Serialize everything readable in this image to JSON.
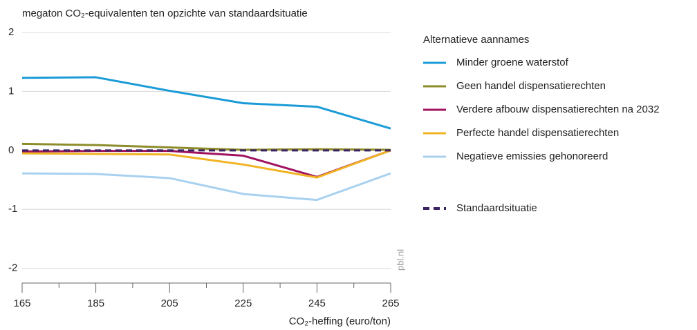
{
  "chart_data": {
    "type": "line",
    "title": "megaton CO₂-equivalenten ten opzichte van standaardsituatie",
    "x_label": "CO₂-heffing (euro/ton)",
    "source": "pbl.nl",
    "legend_title": "Alternatieve aannames",
    "x": [
      165,
      185,
      205,
      225,
      245,
      265
    ],
    "xlim": [
      165,
      265
    ],
    "xticks": [
      165,
      185,
      205,
      225,
      245,
      265
    ],
    "xminorticks": [
      175,
      195,
      215,
      235,
      255
    ],
    "ylim": [
      -2.25,
      2
    ],
    "yticks": [
      2,
      1,
      0,
      -1,
      -2
    ],
    "grid": true,
    "series": [
      {
        "name": "Minder groene waterstof",
        "color": "#1a9bd7",
        "values": [
          1.23,
          1.24,
          1.01,
          0.8,
          0.74,
          0.37
        ]
      },
      {
        "name": "Geen handel dispensatierechten",
        "color": "#8c8c2a",
        "values": [
          0.11,
          0.09,
          0.05,
          0.01,
          0.02,
          0.01
        ]
      },
      {
        "name": "Verdere afbouw dispensatierechten na 2032",
        "color": "#a0125f",
        "values": [
          -0.02,
          -0.01,
          -0.01,
          -0.09,
          -0.45,
          0.0
        ]
      },
      {
        "name": "Perfecte handel dispensatierechten",
        "color": "#f0b323",
        "values": [
          -0.05,
          -0.06,
          -0.07,
          -0.24,
          -0.46,
          0.0
        ]
      },
      {
        "name": "Negatieve emissies gehonoreerd",
        "color": "#a8d1ef",
        "values": [
          -0.39,
          -0.4,
          -0.47,
          -0.74,
          -0.84,
          -0.39
        ]
      },
      {
        "name": "Standaardsituatie",
        "color": "#3b2262",
        "dashed": true,
        "values": [
          0,
          0,
          0,
          0,
          0,
          0
        ]
      }
    ]
  }
}
